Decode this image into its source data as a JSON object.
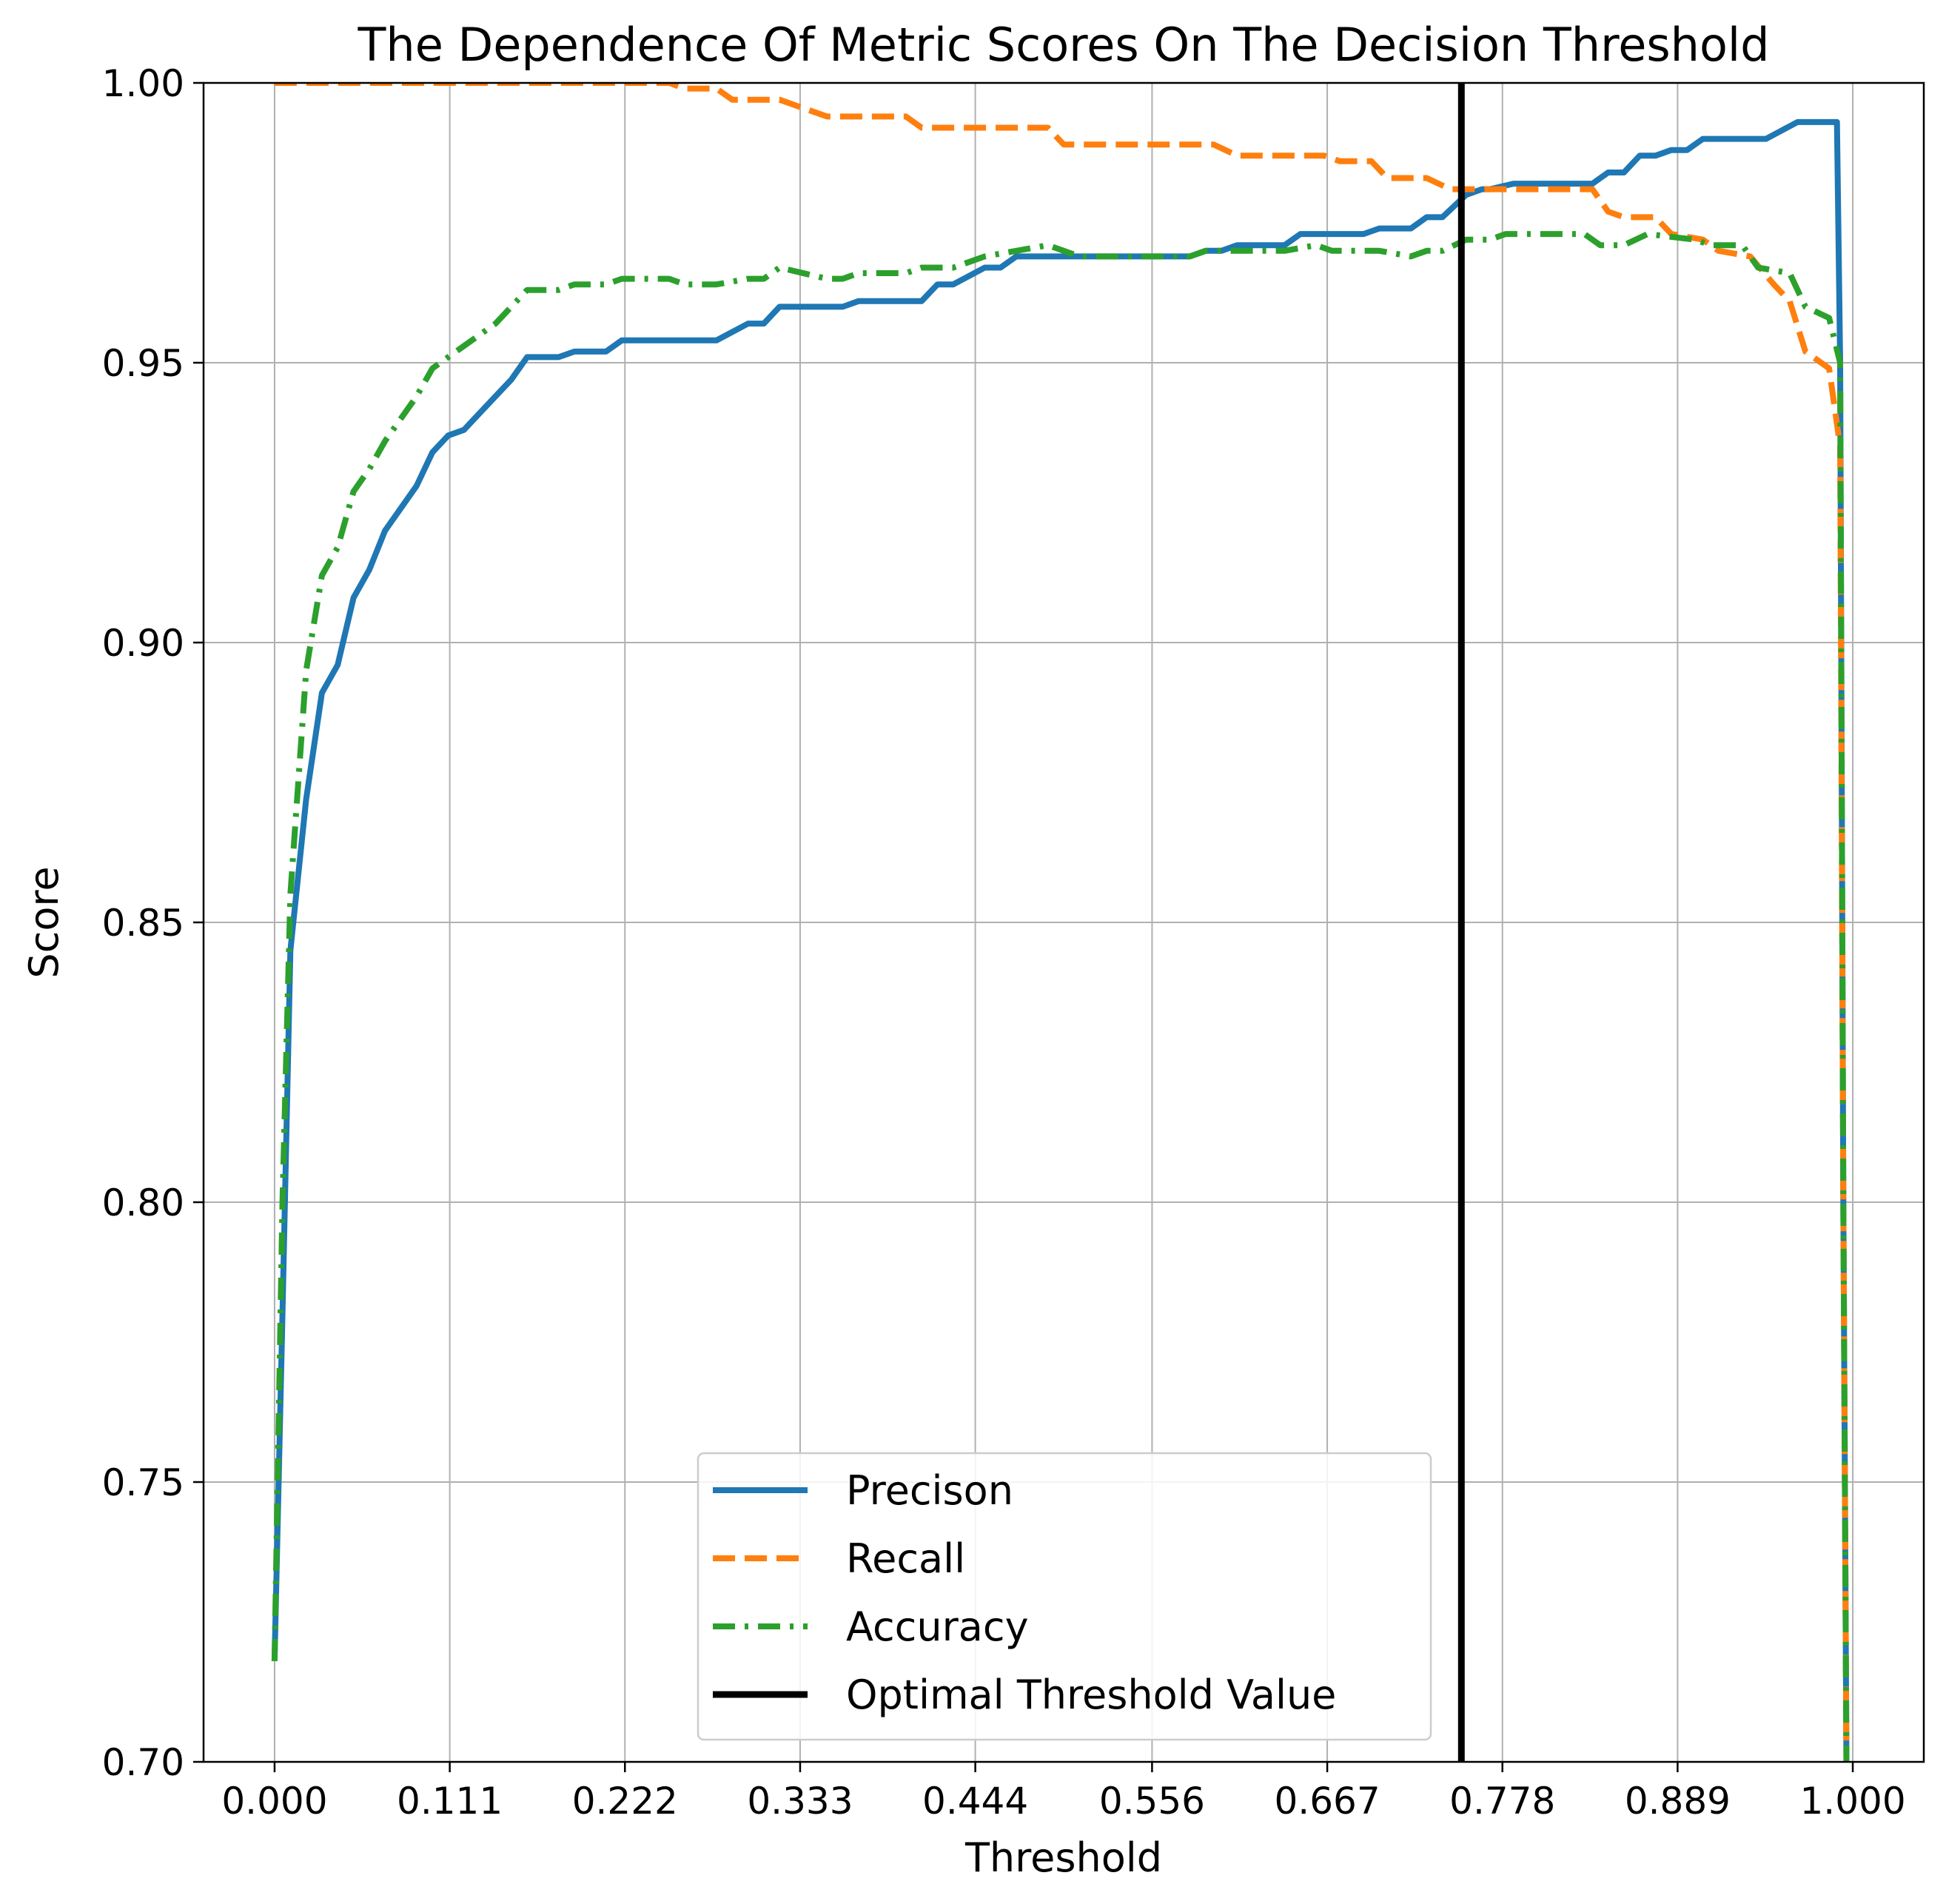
{
  "chart_data": {
    "type": "line",
    "title": "The Dependence Of Metric Scores On The Decision Threshold",
    "xlabel": "Threshold",
    "ylabel": "Score",
    "xlim": [
      -0.045,
      1.045
    ],
    "ylim": [
      0.7,
      1.0
    ],
    "xticks": [
      0,
      0.111,
      0.222,
      0.333,
      0.444,
      0.556,
      0.667,
      0.778,
      0.889,
      1.0
    ],
    "xtick_labels": [
      "0.000",
      "0.111",
      "0.222",
      "0.333",
      "0.444",
      "0.556",
      "0.667",
      "0.778",
      "0.889",
      "1.000"
    ],
    "yticks": [
      0.7,
      0.75,
      0.8,
      0.85,
      0.9,
      0.95,
      1.0
    ],
    "ytick_labels": [
      "0.70",
      "0.75",
      "0.80",
      "0.85",
      "0.90",
      "0.95",
      "1.00"
    ],
    "grid": true,
    "legend_position": "lower-center",
    "series": [
      {
        "name": "Precison",
        "color": "#1f77b4",
        "style": "solid",
        "points": [
          [
            0.0,
            0.718
          ],
          [
            0.005,
            0.78
          ],
          [
            0.01,
            0.845
          ],
          [
            0.02,
            0.872
          ],
          [
            0.03,
            0.891
          ],
          [
            0.04,
            0.896
          ],
          [
            0.05,
            0.908
          ],
          [
            0.06,
            0.913
          ],
          [
            0.07,
            0.92
          ],
          [
            0.08,
            0.924
          ],
          [
            0.09,
            0.928
          ],
          [
            0.1,
            0.934
          ],
          [
            0.11,
            0.937
          ],
          [
            0.12,
            0.938
          ],
          [
            0.13,
            0.941
          ],
          [
            0.14,
            0.944
          ],
          [
            0.15,
            0.947
          ],
          [
            0.16,
            0.951
          ],
          [
            0.18,
            0.951
          ],
          [
            0.19,
            0.952
          ],
          [
            0.21,
            0.952
          ],
          [
            0.22,
            0.954
          ],
          [
            0.26,
            0.954
          ],
          [
            0.28,
            0.954
          ],
          [
            0.3,
            0.957
          ],
          [
            0.31,
            0.957
          ],
          [
            0.32,
            0.96
          ],
          [
            0.36,
            0.96
          ],
          [
            0.37,
            0.961
          ],
          [
            0.41,
            0.961
          ],
          [
            0.42,
            0.964
          ],
          [
            0.43,
            0.964
          ],
          [
            0.45,
            0.967
          ],
          [
            0.46,
            0.967
          ],
          [
            0.47,
            0.969
          ],
          [
            0.58,
            0.969
          ],
          [
            0.59,
            0.97
          ],
          [
            0.6,
            0.97
          ],
          [
            0.61,
            0.971
          ],
          [
            0.64,
            0.971
          ],
          [
            0.65,
            0.973
          ],
          [
            0.69,
            0.973
          ],
          [
            0.7,
            0.974
          ],
          [
            0.72,
            0.974
          ],
          [
            0.73,
            0.976
          ],
          [
            0.74,
            0.976
          ],
          [
            0.755,
            0.98
          ],
          [
            0.765,
            0.981
          ],
          [
            0.77,
            0.981
          ],
          [
            0.785,
            0.982
          ],
          [
            0.835,
            0.982
          ],
          [
            0.845,
            0.984
          ],
          [
            0.855,
            0.984
          ],
          [
            0.865,
            0.987
          ],
          [
            0.875,
            0.987
          ],
          [
            0.885,
            0.988
          ],
          [
            0.895,
            0.988
          ],
          [
            0.905,
            0.99
          ],
          [
            0.945,
            0.99
          ],
          [
            0.965,
            0.993
          ],
          [
            0.99,
            0.993
          ],
          [
            0.992,
            0.95
          ],
          [
            0.994,
            0.8
          ],
          [
            0.996,
            0.7
          ]
        ]
      },
      {
        "name": "Recall",
        "color": "#ff7f0e",
        "style": "dashed",
        "points": [
          [
            0.0,
            1.0
          ],
          [
            0.25,
            1.0
          ],
          [
            0.26,
            0.999
          ],
          [
            0.28,
            0.999
          ],
          [
            0.29,
            0.997
          ],
          [
            0.32,
            0.997
          ],
          [
            0.35,
            0.994
          ],
          [
            0.4,
            0.994
          ],
          [
            0.41,
            0.992
          ],
          [
            0.49,
            0.992
          ],
          [
            0.5,
            0.989
          ],
          [
            0.595,
            0.989
          ],
          [
            0.61,
            0.987
          ],
          [
            0.665,
            0.987
          ],
          [
            0.675,
            0.986
          ],
          [
            0.695,
            0.986
          ],
          [
            0.705,
            0.983
          ],
          [
            0.73,
            0.983
          ],
          [
            0.745,
            0.981
          ],
          [
            0.835,
            0.981
          ],
          [
            0.845,
            0.977
          ],
          [
            0.855,
            0.976
          ],
          [
            0.875,
            0.976
          ],
          [
            0.885,
            0.973
          ],
          [
            0.905,
            0.972
          ],
          [
            0.915,
            0.97
          ],
          [
            0.935,
            0.969
          ],
          [
            0.95,
            0.964
          ],
          [
            0.96,
            0.961
          ],
          [
            0.97,
            0.952
          ],
          [
            0.985,
            0.949
          ],
          [
            0.992,
            0.935
          ],
          [
            0.994,
            0.8
          ],
          [
            0.996,
            0.7
          ]
        ]
      },
      {
        "name": "Accuracy",
        "color": "#2ca02c",
        "style": "dashdot",
        "points": [
          [
            0.0,
            0.718
          ],
          [
            0.005,
            0.8
          ],
          [
            0.01,
            0.855
          ],
          [
            0.02,
            0.895
          ],
          [
            0.03,
            0.912
          ],
          [
            0.04,
            0.917
          ],
          [
            0.05,
            0.927
          ],
          [
            0.06,
            0.931
          ],
          [
            0.07,
            0.936
          ],
          [
            0.08,
            0.94
          ],
          [
            0.09,
            0.944
          ],
          [
            0.1,
            0.949
          ],
          [
            0.11,
            0.951
          ],
          [
            0.12,
            0.953
          ],
          [
            0.13,
            0.955
          ],
          [
            0.14,
            0.957
          ],
          [
            0.15,
            0.96
          ],
          [
            0.16,
            0.963
          ],
          [
            0.18,
            0.963
          ],
          [
            0.19,
            0.964
          ],
          [
            0.21,
            0.964
          ],
          [
            0.22,
            0.965
          ],
          [
            0.25,
            0.965
          ],
          [
            0.26,
            0.964
          ],
          [
            0.28,
            0.964
          ],
          [
            0.3,
            0.965
          ],
          [
            0.31,
            0.965
          ],
          [
            0.32,
            0.967
          ],
          [
            0.35,
            0.965
          ],
          [
            0.36,
            0.965
          ],
          [
            0.37,
            0.966
          ],
          [
            0.4,
            0.966
          ],
          [
            0.41,
            0.967
          ],
          [
            0.43,
            0.967
          ],
          [
            0.45,
            0.969
          ],
          [
            0.47,
            0.97
          ],
          [
            0.49,
            0.971
          ],
          [
            0.51,
            0.969
          ],
          [
            0.58,
            0.969
          ],
          [
            0.59,
            0.97
          ],
          [
            0.64,
            0.97
          ],
          [
            0.66,
            0.971
          ],
          [
            0.67,
            0.97
          ],
          [
            0.7,
            0.97
          ],
          [
            0.72,
            0.969
          ],
          [
            0.73,
            0.97
          ],
          [
            0.74,
            0.97
          ],
          [
            0.755,
            0.972
          ],
          [
            0.77,
            0.972
          ],
          [
            0.78,
            0.973
          ],
          [
            0.83,
            0.973
          ],
          [
            0.84,
            0.971
          ],
          [
            0.855,
            0.971
          ],
          [
            0.87,
            0.973
          ],
          [
            0.9,
            0.972
          ],
          [
            0.91,
            0.971
          ],
          [
            0.93,
            0.971
          ],
          [
            0.94,
            0.967
          ],
          [
            0.96,
            0.966
          ],
          [
            0.97,
            0.96
          ],
          [
            0.985,
            0.958
          ],
          [
            0.992,
            0.95
          ],
          [
            0.994,
            0.8
          ],
          [
            0.996,
            0.7
          ]
        ]
      }
    ],
    "vlines": [
      {
        "name": "Optimal Threshold Value",
        "x": 0.752,
        "color": "#000000",
        "style": "solid"
      }
    ]
  },
  "legend": {
    "items": [
      {
        "label": "Precison",
        "color": "#1f77b4",
        "style": "solid"
      },
      {
        "label": "Recall",
        "color": "#ff7f0e",
        "style": "dashed"
      },
      {
        "label": "Accuracy",
        "color": "#2ca02c",
        "style": "dashdot"
      },
      {
        "label": "Optimal Threshold Value",
        "color": "#000000",
        "style": "solid"
      }
    ]
  }
}
